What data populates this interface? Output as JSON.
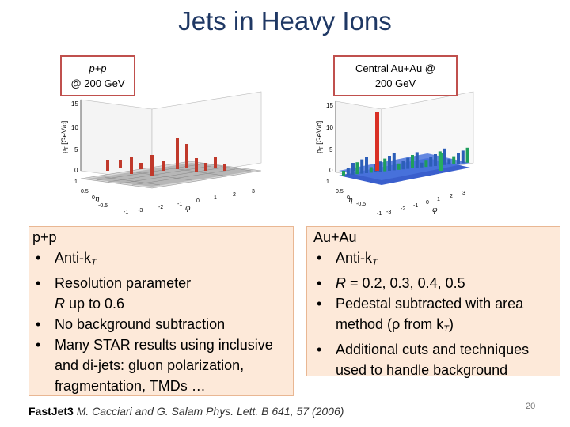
{
  "slide": {
    "title": "Jets in Heavy Ions",
    "slide_number": "20"
  },
  "plots": {
    "pp": {
      "label_line1": "p+p",
      "label_line2": "@ 200 GeV",
      "z_ticks": [
        "15",
        "10",
        "5",
        "0"
      ],
      "eta_ticks": [
        "1",
        "0.5",
        "0",
        "-0.5"
      ],
      "phi_ticks": [
        "-1",
        "-3",
        "-2",
        "-1",
        "0",
        "1",
        "2",
        "3"
      ],
      "z_axis": "p",
      "z_axis_sub": "T",
      "z_axis_unit": " [GeV/c]",
      "eta_axis": "η",
      "phi_axis": "φ",
      "spike_color": "#c0392b"
    },
    "auau": {
      "label_line1": "Central Au+Au @",
      "label_line2": "200 GeV",
      "z_ticks": [
        "15",
        "10",
        "5",
        "0"
      ],
      "eta_ticks": [
        "1",
        "0.5",
        "0",
        "-0.5"
      ],
      "phi_ticks": [
        "-1",
        "-3",
        "-2",
        "-1",
        "0",
        "1",
        "2",
        "3"
      ],
      "z_axis": "p",
      "z_axis_sub": "T",
      "z_axis_unit": " [GeV/c]",
      "eta_axis": "η",
      "phi_axis": "φ",
      "spike_color": "#e74c3c",
      "floor_color": "#2c5eb8"
    }
  },
  "pp_box": {
    "heading": "p+p",
    "b1_pre": "Anti-k",
    "b1_sub": "T",
    "b2_l1": "Resolution parameter",
    "b2_l2_var": "R",
    "b2_l2_rest": " up to 0.6",
    "b3": "No background subtraction",
    "b4_l1": "Many STAR results using inclusive",
    "b4_l2": "and di-jets: gluon polarization,",
    "b4_l3": "fragmentation, TMDs …"
  },
  "auau_box": {
    "heading": "Au+Au",
    "b1_pre": "Anti-k",
    "b1_sub": "T",
    "b2_var": "R",
    "b2_rest": " = 0.2, 0.3, 0.4, 0.5",
    "b3_l1": "Pedestal subtracted with area",
    "b3_l2_pre": "method (ρ from k",
    "b3_l2_sub": "T",
    "b3_l2_post": ")",
    "b4_l1": "Additional cuts and techniques",
    "b4_l2": "used to handle background"
  },
  "footnote": {
    "fastjet": "FastJet3",
    "reference": " M. Cacciari and G. Salam Phys. Lett. B 641, 57 (2006)"
  }
}
